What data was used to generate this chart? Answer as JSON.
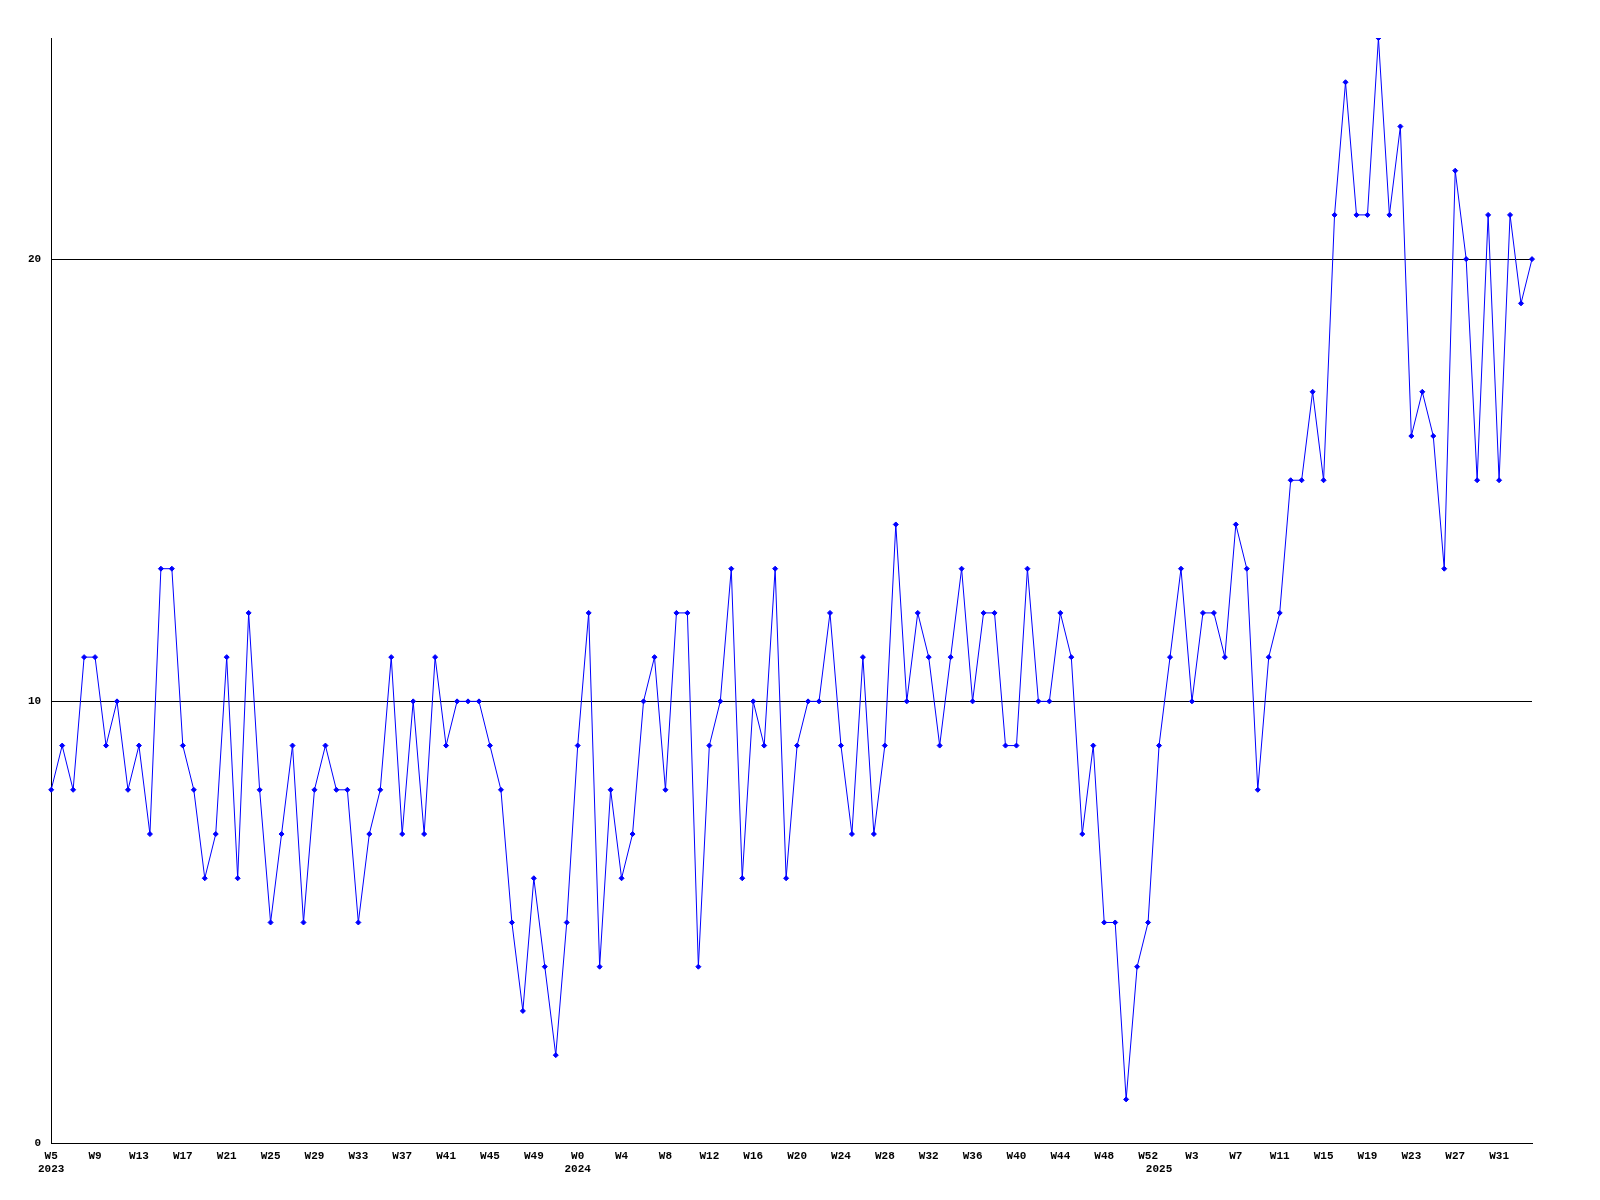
{
  "chart_data": {
    "type": "line",
    "categories": [
      "W5\n2023",
      null,
      null,
      null,
      "W9",
      null,
      null,
      null,
      "W13",
      null,
      null,
      null,
      "W17",
      null,
      null,
      null,
      "W21",
      null,
      null,
      null,
      "W25",
      null,
      null,
      null,
      "W29",
      null,
      null,
      null,
      "W33",
      null,
      null,
      null,
      "W37",
      null,
      null,
      null,
      "W41",
      null,
      null,
      null,
      "W45",
      null,
      null,
      null,
      "W49",
      null,
      null,
      null,
      "W0\n2024",
      null,
      null,
      null,
      "W4",
      null,
      null,
      null,
      "W8",
      null,
      null,
      null,
      "W12",
      null,
      null,
      null,
      "W16",
      null,
      null,
      null,
      "W20",
      null,
      null,
      null,
      "W24",
      null,
      null,
      null,
      "W28",
      null,
      null,
      null,
      "W32",
      null,
      null,
      null,
      "W36",
      null,
      null,
      null,
      "W40",
      null,
      null,
      null,
      "W44",
      null,
      null,
      null,
      "W48",
      null,
      null,
      null,
      "W52",
      "\n2025",
      null,
      null,
      "W3",
      null,
      null,
      null,
      "W7",
      null,
      null,
      null,
      "W11",
      null,
      null,
      null,
      "W15",
      null,
      null,
      null,
      "W19",
      null,
      null,
      null,
      "W23",
      null,
      null,
      null,
      "W27",
      null,
      null,
      null,
      "W31",
      null,
      null,
      null
    ],
    "series": [
      {
        "color": "#0000ff",
        "values": [
          8,
          9,
          8,
          11,
          11,
          9,
          10,
          8,
          9,
          7,
          13,
          13,
          9,
          8,
          6,
          7,
          11,
          6,
          12,
          8,
          5,
          7,
          9,
          5,
          8,
          9,
          8,
          8,
          5,
          7,
          8,
          11,
          7,
          10,
          7,
          11,
          9,
          10,
          10,
          10,
          9,
          8,
          5,
          3,
          6,
          4,
          2,
          5,
          9,
          12,
          4,
          8,
          6,
          7,
          10,
          11,
          8,
          12,
          12,
          4,
          9,
          10,
          13,
          6,
          10,
          9,
          13,
          6,
          9,
          10,
          10,
          12,
          9,
          7,
          11,
          7,
          9,
          14,
          10,
          12,
          11,
          9,
          11,
          13,
          10,
          12,
          12,
          9,
          9,
          13,
          10,
          10,
          12,
          11,
          7,
          9,
          5,
          5,
          1,
          4,
          5,
          9,
          11,
          13,
          10,
          12,
          12,
          11,
          14,
          13,
          8,
          11,
          12,
          15,
          15,
          17,
          15,
          21,
          24,
          21,
          21,
          25,
          21,
          23,
          16,
          17,
          16,
          13,
          22,
          20,
          15,
          21,
          15,
          21,
          19,
          20
        ]
      }
    ],
    "ylim": [
      0,
      25
    ],
    "yticks": [
      0,
      10,
      20
    ],
    "grid": "y",
    "legend": false,
    "marker": "diamond",
    "line_style": "solid"
  }
}
